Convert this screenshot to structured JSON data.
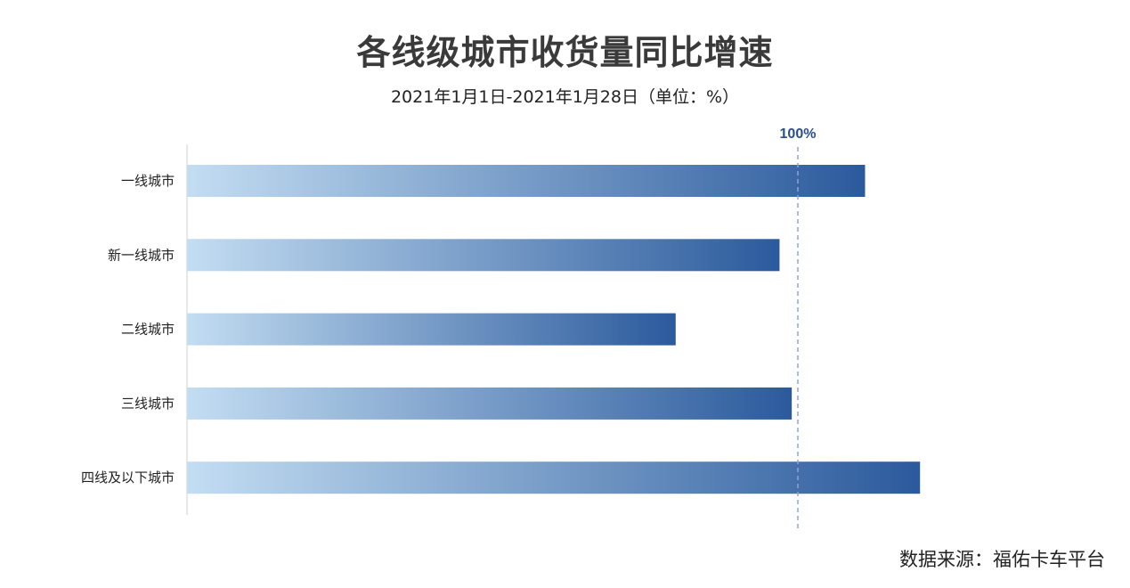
{
  "title": "各线级城市收货量同比增速",
  "subtitle": "2021年1月1日-2021年1月28日（单位：%）",
  "source": "数据来源：福佑卡车平台",
  "colors": {
    "bar_start": "#c3ddf2",
    "bar_end": "#2b5a9c",
    "reference_line": "#8fa3d6",
    "reference_label": "#2b4f8a",
    "axis": "#e0e0e0"
  },
  "chart_data": {
    "type": "bar",
    "orientation": "horizontal",
    "categories": [
      "一线城市",
      "新一线城市",
      "二线城市",
      "三线城市",
      "四线及以下城市"
    ],
    "values": [
      111,
      97,
      80,
      99,
      120
    ],
    "xlim": [
      0,
      130
    ],
    "reference_line": {
      "value": 100,
      "label": "100%"
    },
    "grid": false,
    "legend": "none",
    "xaxis_visible": false
  }
}
